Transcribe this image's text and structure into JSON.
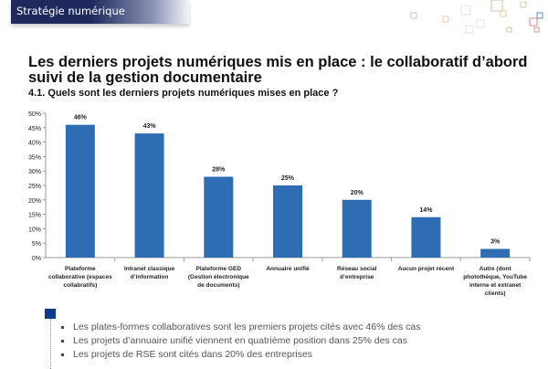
{
  "header": {
    "section": "Stratégie numérique"
  },
  "title": "Les derniers projets numériques mis en place : le collaboratif d’abord suivi de la gestion documentaire",
  "subtitle": "4.1. Quels sont les derniers projets numériques mises en place ?",
  "colors": {
    "bar": "#2e6db4",
    "header": "#1e2a5e"
  },
  "chart_data": {
    "type": "bar",
    "categories": [
      "Plateforme collaborative (espaces collabratifs)",
      "Intranet classique d’information",
      "Plateforme GED (Gestion électronique de documents)",
      "Annuaire unifié",
      "Réseau social d’entreprise",
      "Aucun projet récent",
      "Autre (dont photothèque, YouTube interne et extranet clients)"
    ],
    "values": [
      46,
      43,
      28,
      25,
      20,
      14,
      3
    ],
    "data_labels": [
      "46%",
      "43%",
      "28%",
      "25%",
      "20%",
      "14%",
      "3%"
    ],
    "yticks": [
      "0%",
      "5%",
      "10%",
      "15%",
      "20%",
      "25%",
      "30%",
      "35%",
      "40%",
      "45%",
      "50%"
    ],
    "ylim": [
      0,
      50
    ],
    "grid": false
  },
  "bullets": [
    "Les plates-formes collaboratives sont les premiers projets cités avec  46% des cas",
    "Les projets d’annuaire unifié viennent en quatrième position dans 25% des cas",
    "Les projets de RSE sont cités dans 20% des entreprises"
  ]
}
